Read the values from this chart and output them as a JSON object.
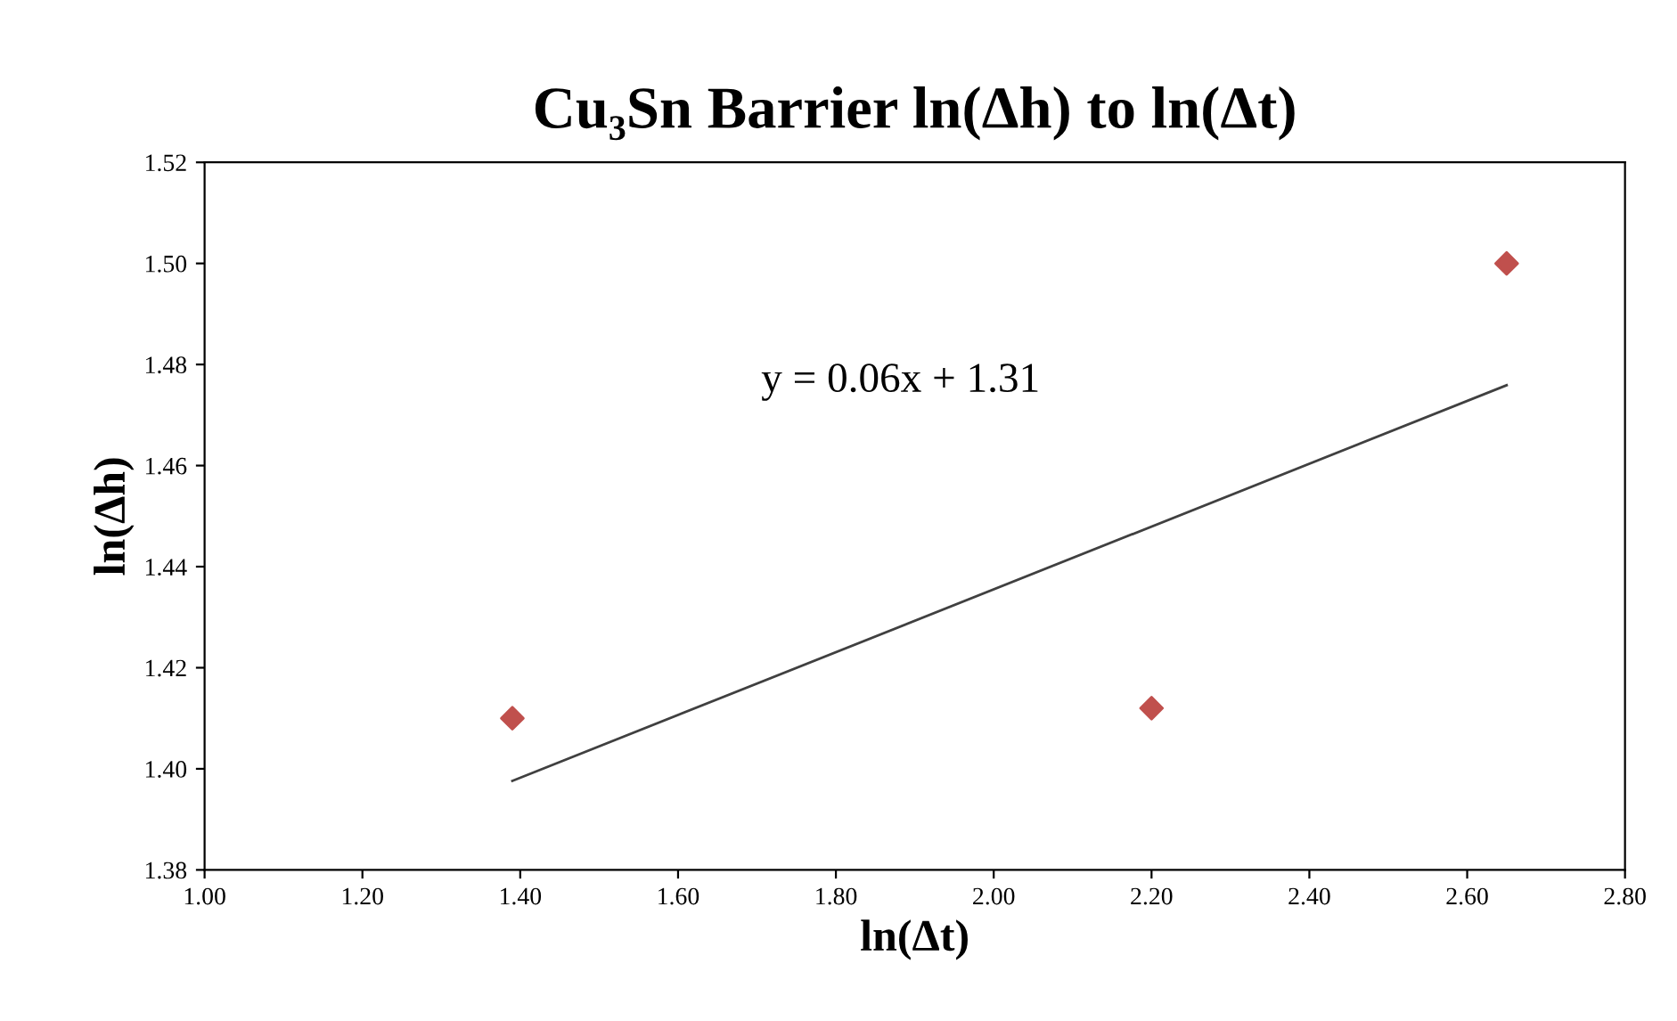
{
  "chart_data": {
    "type": "scatter",
    "title": "Cu₃Sn Barrier ln(Δh) to ln(Δt)",
    "xlabel": "ln(Δt)",
    "ylabel": "ln(Δh)",
    "marker": "diamond",
    "grid": false,
    "legend": false,
    "xlim": [
      1.0,
      2.8
    ],
    "xticks": [
      {
        "value": 1.0,
        "label": "1.00"
      },
      {
        "value": 1.2,
        "label": "1.20"
      },
      {
        "value": 1.4,
        "label": "1.40"
      },
      {
        "value": 1.6,
        "label": "1.60"
      },
      {
        "value": 1.8,
        "label": "1.80"
      },
      {
        "value": 2.0,
        "label": "2.00"
      },
      {
        "value": 2.2,
        "label": "2.20"
      },
      {
        "value": 2.4,
        "label": "2.40"
      },
      {
        "value": 2.6,
        "label": "2.60"
      },
      {
        "value": 2.8,
        "label": "2.80"
      }
    ],
    "ylim": [
      1.38,
      1.52
    ],
    "yticks": [
      {
        "value": 1.38,
        "label": "1.38"
      },
      {
        "value": 1.4,
        "label": "1.40"
      },
      {
        "value": 1.42,
        "label": "1.42"
      },
      {
        "value": 1.44,
        "label": "1.44"
      },
      {
        "value": 1.46,
        "label": "1.46"
      },
      {
        "value": 1.48,
        "label": "1.48"
      },
      {
        "value": 1.5,
        "label": "1.50"
      },
      {
        "value": 1.52,
        "label": "1.52"
      }
    ],
    "series": [
      {
        "color": "#c0504d",
        "x": [
          1.39,
          2.2,
          2.65
        ],
        "values": [
          1.41,
          1.412,
          1.5
        ]
      },
      {
        "type": "line",
        "color": "#404040",
        "marker": "none",
        "x": [
          1.39,
          2.65
        ],
        "values": [
          1.3976,
          1.4759
        ]
      }
    ],
    "annotations": [
      "y = 0.06x + 1.31"
    ]
  }
}
